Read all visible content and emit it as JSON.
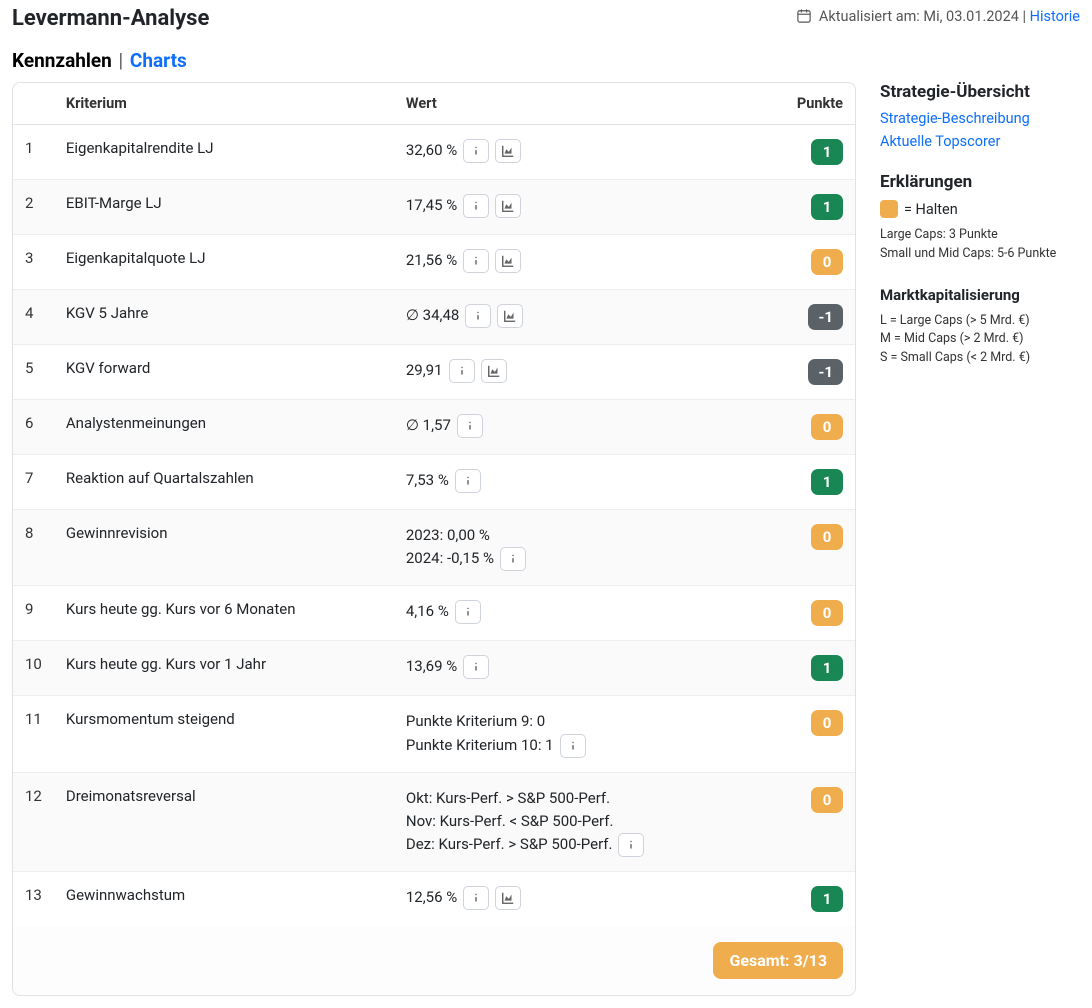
{
  "title": "Levermann-Analyse",
  "updated_label": "Aktualisiert am: Mi, 03.01.2024",
  "history_label": "Historie",
  "tab_active": "Kennzahlen",
  "tab_separator": " | ",
  "tab_inactive": "Charts",
  "columns": {
    "kriterium": "Kriterium",
    "wert": "Wert",
    "punkte": "Punkte"
  },
  "total_label": "Gesamt: 3/13",
  "badge_colors": {
    "1": "#198754",
    "0": "#f0ad4e",
    "-1": "#5a6268"
  },
  "rows": [
    {
      "n": "1",
      "crit": "Eigenkapitalrendite LJ",
      "lines": [
        "32,60 %"
      ],
      "info": true,
      "chart": true,
      "pts": "1"
    },
    {
      "n": "2",
      "crit": "EBIT-Marge LJ",
      "lines": [
        "17,45 %"
      ],
      "info": true,
      "chart": true,
      "pts": "1"
    },
    {
      "n": "3",
      "crit": "Eigenkapitalquote LJ",
      "lines": [
        "21,56 %"
      ],
      "info": true,
      "chart": true,
      "pts": "0"
    },
    {
      "n": "4",
      "crit": "KGV 5 Jahre",
      "lines": [
        "∅ 34,48"
      ],
      "info": true,
      "chart": true,
      "pts": "-1"
    },
    {
      "n": "5",
      "crit": "KGV forward",
      "lines": [
        "29,91"
      ],
      "info": true,
      "chart": true,
      "pts": "-1"
    },
    {
      "n": "6",
      "crit": "Analystenmeinungen",
      "lines": [
        "∅ 1,57"
      ],
      "info": true,
      "chart": false,
      "pts": "0"
    },
    {
      "n": "7",
      "crit": "Reaktion auf Quartalszahlen",
      "lines": [
        "7,53 %"
      ],
      "info": true,
      "chart": false,
      "pts": "1"
    },
    {
      "n": "8",
      "crit": "Gewinnrevision",
      "lines": [
        "2023: 0,00 %",
        "2024: -0,15 %"
      ],
      "info": true,
      "chart": false,
      "pts": "0"
    },
    {
      "n": "9",
      "crit": "Kurs heute gg. Kurs vor 6 Monaten",
      "lines": [
        "4,16 %"
      ],
      "info": true,
      "chart": false,
      "pts": "0"
    },
    {
      "n": "10",
      "crit": "Kurs heute gg. Kurs vor 1 Jahr",
      "lines": [
        "13,69 %"
      ],
      "info": true,
      "chart": false,
      "pts": "1"
    },
    {
      "n": "11",
      "crit": "Kursmomentum steigend",
      "lines": [
        "Punkte Kriterium 9: 0",
        "Punkte Kriterium 10: 1"
      ],
      "info": true,
      "chart": false,
      "pts": "0"
    },
    {
      "n": "12",
      "crit": "Dreimonatsreversal",
      "lines": [
        "Okt: Kurs-Perf. > S&P 500-Perf.",
        "Nov: Kurs-Perf. < S&P 500-Perf.",
        "Dez: Kurs-Perf. > S&P 500-Perf."
      ],
      "info": true,
      "chart": false,
      "pts": "0"
    },
    {
      "n": "13",
      "crit": "Gewinnwachstum",
      "lines": [
        "12,56 %"
      ],
      "info": true,
      "chart": true,
      "pts": "1"
    }
  ],
  "side": {
    "overview_title": "Strategie-Übersicht",
    "link_desc": "Strategie-Beschreibung",
    "link_top": "Aktuelle Topscorer",
    "explain_title": "Erklärungen",
    "hold_label": "= Halten",
    "large_caps": "Large Caps: 3 Punkte",
    "small_mid": "Small und Mid Caps: 5-6 Punkte",
    "mcap_title": "Marktkapitalisierung",
    "mcap_l": "L = Large Caps (> 5 Mrd. €)",
    "mcap_m": "M = Mid Caps (> 2 Mrd. €)",
    "mcap_s": "S = Small Caps (< 2 Mrd. €)"
  }
}
